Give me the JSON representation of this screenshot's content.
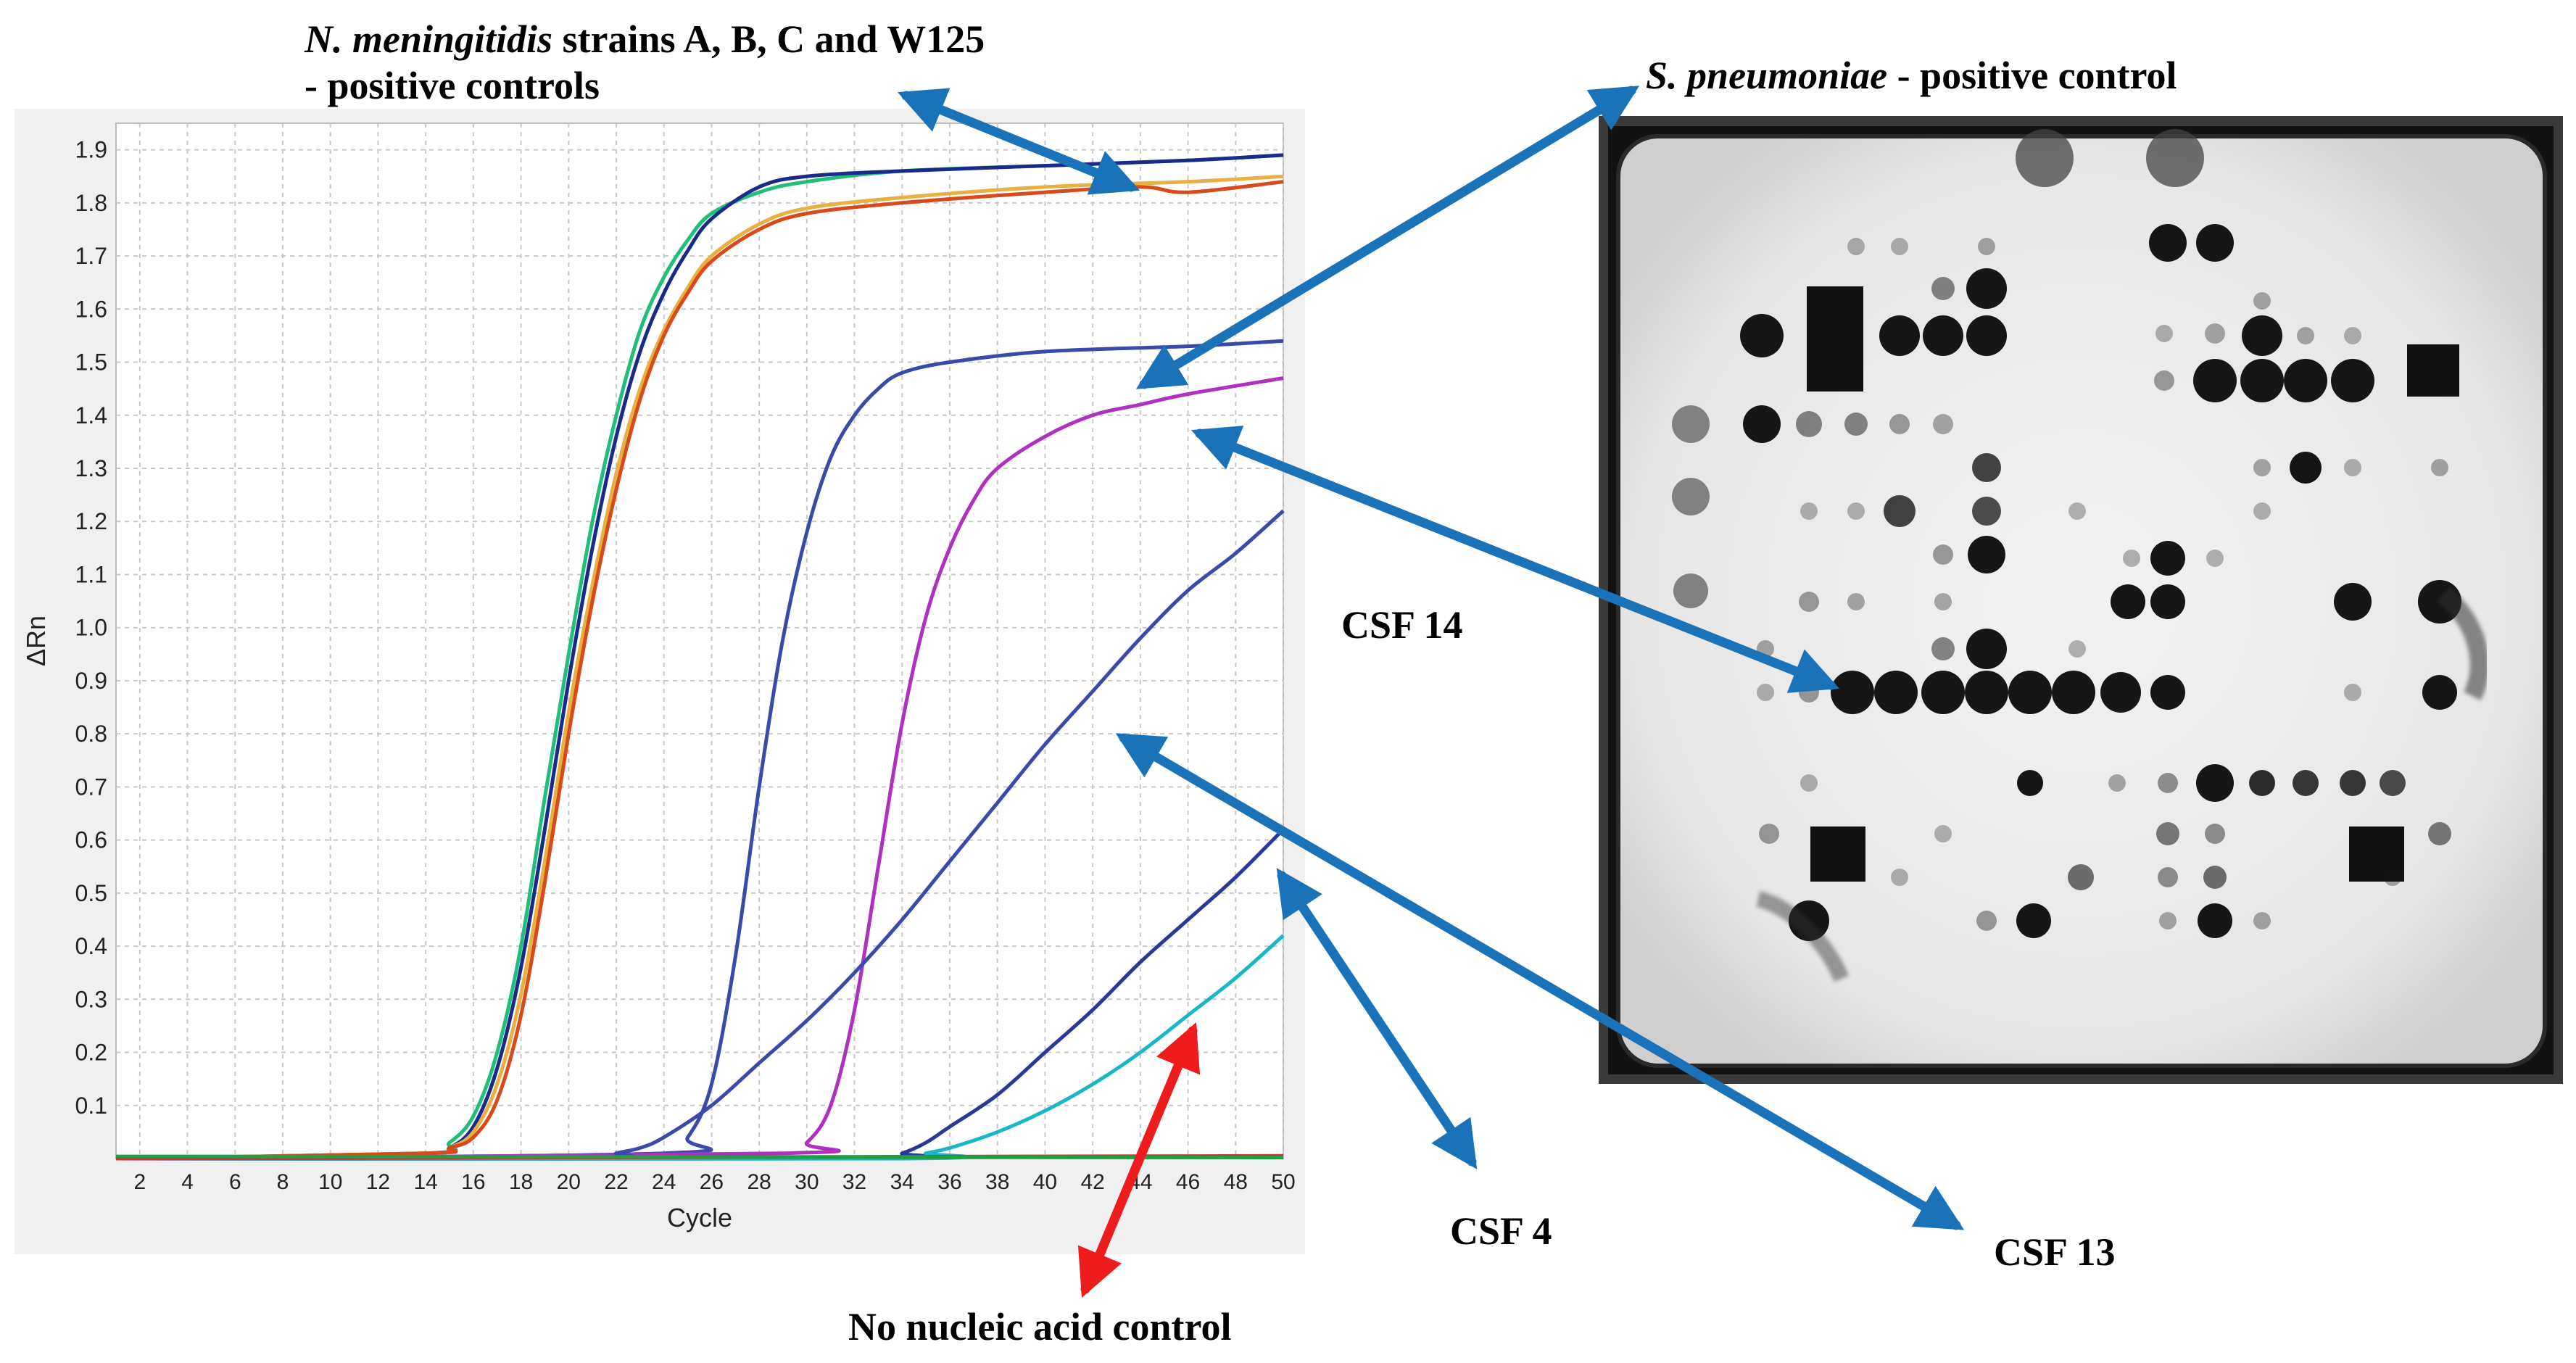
{
  "labels": {
    "nm_line1_italic": "N. meningitidis",
    "nm_line1_rest": " strains A, B, C and W125",
    "nm_line2": "- positive controls",
    "sp_italic": "S. pneumoniae",
    "sp_rest": " - positive control",
    "csf14": "CSF 14",
    "csf4": "CSF 4",
    "csf13": "CSF 13",
    "nnc": "No nucleic acid control"
  },
  "colors": {
    "blue_arrow": "#1a72b8",
    "red_arrow": "#ee1c1c"
  },
  "chart_data": {
    "type": "line",
    "xlabel": "Cycle",
    "ylabel": "ΔRn",
    "xlim": [
      1,
      50
    ],
    "ylim": [
      0,
      1.95
    ],
    "xticks": [
      2,
      4,
      6,
      8,
      10,
      12,
      14,
      16,
      18,
      20,
      22,
      24,
      26,
      28,
      30,
      32,
      34,
      36,
      38,
      40,
      42,
      44,
      46,
      48,
      50
    ],
    "yticks": [
      0.1,
      0.2,
      0.3,
      0.4,
      0.5,
      0.6,
      0.7,
      0.8,
      0.9,
      1.0,
      1.1,
      1.2,
      1.3,
      1.4,
      1.5,
      1.6,
      1.7,
      1.8,
      1.9
    ],
    "ytick_labels": [
      "0.1",
      "0.2",
      "0.3",
      "0.4",
      "0.5",
      "0.6",
      "0.7",
      "0.8",
      "0.9",
      "1.0",
      "1.1",
      "1.2",
      "1.3",
      "1.4",
      "1.5",
      "1.6",
      "1.7",
      "1.8",
      "1.9"
    ],
    "grid": true,
    "series": [
      {
        "color": "#1fbf7a",
        "points": [
          [
            1,
            0
          ],
          [
            14,
            0.01
          ],
          [
            15,
            0.03
          ],
          [
            16,
            0.08
          ],
          [
            17,
            0.2
          ],
          [
            18,
            0.4
          ],
          [
            19,
            0.68
          ],
          [
            20,
            0.95
          ],
          [
            21,
            1.2
          ],
          [
            22,
            1.4
          ],
          [
            23,
            1.56
          ],
          [
            24,
            1.66
          ],
          [
            25,
            1.73
          ],
          [
            26,
            1.78
          ],
          [
            28,
            1.82
          ],
          [
            30,
            1.84
          ],
          [
            34,
            1.86
          ],
          [
            40,
            1.87
          ],
          [
            46,
            1.88
          ],
          [
            50,
            1.89
          ]
        ]
      },
      {
        "color": "#1a2a8a",
        "points": [
          [
            1,
            0
          ],
          [
            14,
            0.01
          ],
          [
            15,
            0.02
          ],
          [
            16,
            0.06
          ],
          [
            17,
            0.17
          ],
          [
            18,
            0.36
          ],
          [
            19,
            0.62
          ],
          [
            20,
            0.9
          ],
          [
            21,
            1.15
          ],
          [
            22,
            1.36
          ],
          [
            23,
            1.52
          ],
          [
            24,
            1.63
          ],
          [
            25,
            1.71
          ],
          [
            26,
            1.77
          ],
          [
            28,
            1.83
          ],
          [
            30,
            1.85
          ],
          [
            34,
            1.86
          ],
          [
            40,
            1.87
          ],
          [
            46,
            1.88
          ],
          [
            50,
            1.89
          ]
        ]
      },
      {
        "color": "#e8b040",
        "points": [
          [
            1,
            0
          ],
          [
            14,
            0.01
          ],
          [
            15,
            0.02
          ],
          [
            16,
            0.05
          ],
          [
            17,
            0.14
          ],
          [
            18,
            0.31
          ],
          [
            19,
            0.56
          ],
          [
            20,
            0.84
          ],
          [
            21,
            1.08
          ],
          [
            22,
            1.29
          ],
          [
            23,
            1.45
          ],
          [
            24,
            1.56
          ],
          [
            25,
            1.64
          ],
          [
            26,
            1.7
          ],
          [
            28,
            1.76
          ],
          [
            30,
            1.79
          ],
          [
            34,
            1.81
          ],
          [
            40,
            1.83
          ],
          [
            46,
            1.84
          ],
          [
            50,
            1.85
          ]
        ]
      },
      {
        "color": "#d84a1b",
        "points": [
          [
            1,
            0
          ],
          [
            14,
            0.01
          ],
          [
            15,
            0.02
          ],
          [
            16,
            0.04
          ],
          [
            17,
            0.11
          ],
          [
            18,
            0.27
          ],
          [
            19,
            0.52
          ],
          [
            20,
            0.8
          ],
          [
            21,
            1.05
          ],
          [
            22,
            1.26
          ],
          [
            23,
            1.43
          ],
          [
            24,
            1.55
          ],
          [
            25,
            1.63
          ],
          [
            26,
            1.69
          ],
          [
            28,
            1.75
          ],
          [
            30,
            1.78
          ],
          [
            34,
            1.8
          ],
          [
            40,
            1.82
          ],
          [
            44,
            1.83
          ],
          [
            46,
            1.82
          ],
          [
            50,
            1.84
          ]
        ]
      },
      {
        "color": "#3a4aaa",
        "points": [
          [
            1,
            0
          ],
          [
            24,
            0.01
          ],
          [
            25,
            0.04
          ],
          [
            26,
            0.14
          ],
          [
            27,
            0.38
          ],
          [
            28,
            0.7
          ],
          [
            29,
            0.98
          ],
          [
            30,
            1.18
          ],
          [
            31,
            1.32
          ],
          [
            32,
            1.4
          ],
          [
            33,
            1.45
          ],
          [
            34,
            1.48
          ],
          [
            36,
            1.5
          ],
          [
            40,
            1.52
          ],
          [
            46,
            1.53
          ],
          [
            50,
            1.54
          ]
        ]
      },
      {
        "color": "#b030c0",
        "points": [
          [
            1,
            0
          ],
          [
            29,
            0.01
          ],
          [
            30,
            0.03
          ],
          [
            31,
            0.1
          ],
          [
            32,
            0.28
          ],
          [
            33,
            0.55
          ],
          [
            34,
            0.82
          ],
          [
            35,
            1.02
          ],
          [
            36,
            1.15
          ],
          [
            37,
            1.24
          ],
          [
            38,
            1.3
          ],
          [
            40,
            1.36
          ],
          [
            42,
            1.4
          ],
          [
            44,
            1.42
          ],
          [
            46,
            1.44
          ],
          [
            50,
            1.47
          ]
        ]
      },
      {
        "color": "#3a4aaa",
        "points": [
          [
            1,
            0
          ],
          [
            21,
            0
          ],
          [
            22,
            0.01
          ],
          [
            23,
            0.02
          ],
          [
            24,
            0.04
          ],
          [
            26,
            0.1
          ],
          [
            28,
            0.18
          ],
          [
            30,
            0.26
          ],
          [
            32,
            0.35
          ],
          [
            34,
            0.45
          ],
          [
            36,
            0.56
          ],
          [
            38,
            0.67
          ],
          [
            40,
            0.78
          ],
          [
            42,
            0.88
          ],
          [
            44,
            0.98
          ],
          [
            46,
            1.07
          ],
          [
            48,
            1.14
          ],
          [
            50,
            1.22
          ]
        ]
      },
      {
        "color": "#2a3898",
        "points": [
          [
            1,
            0
          ],
          [
            33,
            0
          ],
          [
            34,
            0.01
          ],
          [
            35,
            0.03
          ],
          [
            36,
            0.06
          ],
          [
            38,
            0.12
          ],
          [
            40,
            0.2
          ],
          [
            42,
            0.28
          ],
          [
            44,
            0.37
          ],
          [
            46,
            0.45
          ],
          [
            48,
            0.53
          ],
          [
            50,
            0.62
          ]
        ]
      },
      {
        "color": "#19b6c6",
        "points": [
          [
            1,
            0
          ],
          [
            34,
            0
          ],
          [
            35,
            0.01
          ],
          [
            36,
            0.02
          ],
          [
            38,
            0.05
          ],
          [
            40,
            0.09
          ],
          [
            42,
            0.14
          ],
          [
            44,
            0.2
          ],
          [
            46,
            0.27
          ],
          [
            48,
            0.34
          ],
          [
            50,
            0.42
          ]
        ]
      },
      {
        "color": "#d23030",
        "points": [
          [
            1,
            0
          ],
          [
            50,
            0.005
          ]
        ]
      },
      {
        "color": "#20a040",
        "points": [
          [
            1,
            0.004
          ],
          [
            50,
            0.002
          ]
        ]
      }
    ]
  }
}
